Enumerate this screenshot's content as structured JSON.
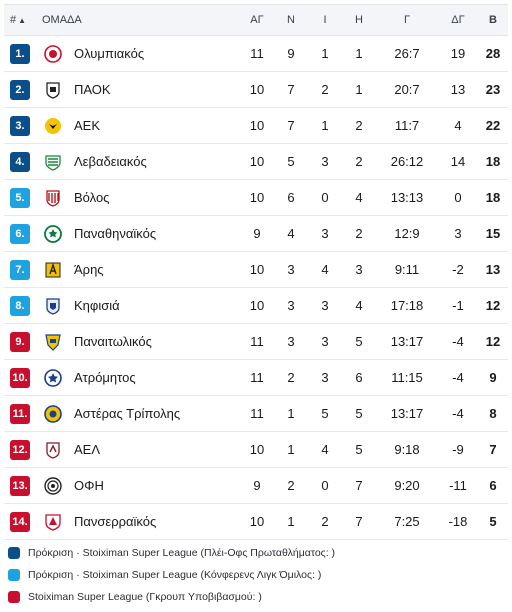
{
  "header": {
    "pos": "#",
    "team": "ΟΜΑΔΑ",
    "played": "ΑΓ",
    "won": "Ν",
    "drawn": "Ι",
    "lost": "Η",
    "goals": "Γ",
    "diff": "ΔΓ",
    "points": "Β"
  },
  "colors": {
    "dark_blue": "#0b4f8a",
    "light_blue": "#1fa3e0",
    "red": "#c8102e"
  },
  "rows": [
    {
      "pos": "1.",
      "badge": "dark_blue",
      "logo": "olympiacos-logo",
      "team": "Ολυμπιακός",
      "played": "11",
      "won": "9",
      "drawn": "1",
      "lost": "1",
      "goals": "26:7",
      "diff": "19",
      "points": "28"
    },
    {
      "pos": "2.",
      "badge": "dark_blue",
      "logo": "paok-logo",
      "team": "ΠΑΟΚ",
      "played": "10",
      "won": "7",
      "drawn": "2",
      "lost": "1",
      "goals": "20:7",
      "diff": "13",
      "points": "23"
    },
    {
      "pos": "3.",
      "badge": "dark_blue",
      "logo": "aek-logo",
      "team": "ΑΕΚ",
      "played": "10",
      "won": "7",
      "drawn": "1",
      "lost": "2",
      "goals": "11:7",
      "diff": "4",
      "points": "22"
    },
    {
      "pos": "4.",
      "badge": "dark_blue",
      "logo": "levadiakos-logo",
      "team": "Λεβαδειακός",
      "played": "10",
      "won": "5",
      "drawn": "3",
      "lost": "2",
      "goals": "26:12",
      "diff": "14",
      "points": "18"
    },
    {
      "pos": "5.",
      "badge": "light_blue",
      "logo": "volos-logo",
      "team": "Βόλος",
      "played": "10",
      "won": "6",
      "drawn": "0",
      "lost": "4",
      "goals": "13:13",
      "diff": "0",
      "points": "18"
    },
    {
      "pos": "6.",
      "badge": "light_blue",
      "logo": "panathinaikos-logo",
      "team": "Παναθηναϊκός",
      "played": "9",
      "won": "4",
      "drawn": "3",
      "lost": "2",
      "goals": "12:9",
      "diff": "3",
      "points": "15"
    },
    {
      "pos": "7.",
      "badge": "light_blue",
      "logo": "aris-logo",
      "team": "Άρης",
      "played": "10",
      "won": "3",
      "drawn": "4",
      "lost": "3",
      "goals": "9:11",
      "diff": "-2",
      "points": "13"
    },
    {
      "pos": "8.",
      "badge": "light_blue",
      "logo": "kifisia-logo",
      "team": "Κηφισιά",
      "played": "10",
      "won": "3",
      "drawn": "3",
      "lost": "4",
      "goals": "17:18",
      "diff": "-1",
      "points": "12"
    },
    {
      "pos": "9.",
      "badge": "red",
      "logo": "panetolikos-logo",
      "team": "Παναιτωλικός",
      "played": "11",
      "won": "3",
      "drawn": "3",
      "lost": "5",
      "goals": "13:17",
      "diff": "-4",
      "points": "12"
    },
    {
      "pos": "10.",
      "badge": "red",
      "logo": "atromitos-logo",
      "team": "Ατρόμητος",
      "played": "11",
      "won": "2",
      "drawn": "3",
      "lost": "6",
      "goals": "11:15",
      "diff": "-4",
      "points": "9"
    },
    {
      "pos": "11.",
      "badge": "red",
      "logo": "asteras-logo",
      "team": "Αστέρας Τρίπολης",
      "played": "11",
      "won": "1",
      "drawn": "5",
      "lost": "5",
      "goals": "13:17",
      "diff": "-4",
      "points": "8"
    },
    {
      "pos": "12.",
      "badge": "red",
      "logo": "ael-logo",
      "team": "ΑΕΛ",
      "played": "10",
      "won": "1",
      "drawn": "4",
      "lost": "5",
      "goals": "9:18",
      "diff": "-9",
      "points": "7"
    },
    {
      "pos": "13.",
      "badge": "red",
      "logo": "ofi-logo",
      "team": "ΟΦΗ",
      "played": "9",
      "won": "2",
      "drawn": "0",
      "lost": "7",
      "goals": "9:20",
      "diff": "-11",
      "points": "6"
    },
    {
      "pos": "14.",
      "badge": "red",
      "logo": "panserraikos-logo",
      "team": "Πανσερραϊκός",
      "played": "10",
      "won": "1",
      "drawn": "2",
      "lost": "7",
      "goals": "7:25",
      "diff": "-18",
      "points": "5"
    }
  ],
  "legend": [
    {
      "color": "dark_blue",
      "text": "Πρόκριση · Stoiximan Super League (Πλέι-Οφς Πρωταθλήματος: )"
    },
    {
      "color": "light_blue",
      "text": "Πρόκριση · Stoiximan Super League (Κόνφερενς Λιγκ Όμιλος: )"
    },
    {
      "color": "red",
      "text": "Stoiximan Super League (Γκρουπ Υποβιβασμού: )"
    }
  ]
}
